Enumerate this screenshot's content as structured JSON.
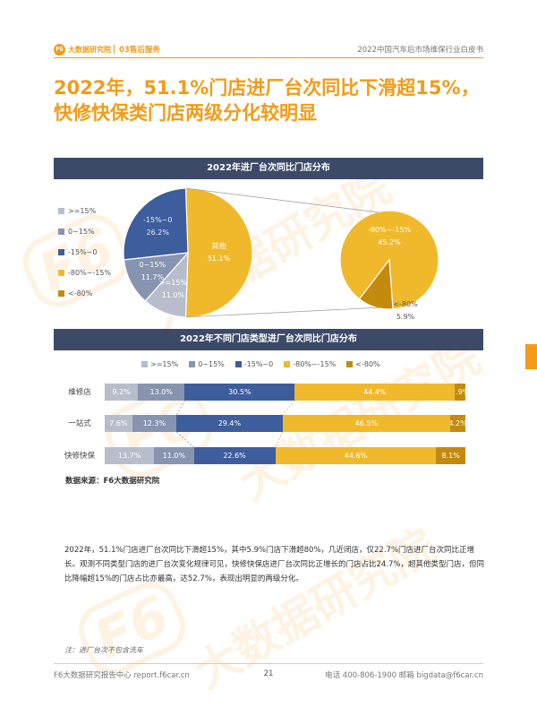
{
  "header": {
    "logo_mark": "F6",
    "logo_text": "大数据研究院",
    "section": "03售后服务",
    "report_title": "2022中国汽车后市场维保行业白皮书"
  },
  "headline": {
    "line1": "2022年，51.1%门店进厂台次同比下滑超15%，",
    "line2": "快修快保类门店两级分化较明显"
  },
  "watermark": {
    "text": "大数据研究院",
    "mark": "F6"
  },
  "colors": {
    "accent": "#f39b16",
    "title_bar": "#3c4a68",
    "gte15": "#b8bdcc",
    "r0_15": "#8794b0",
    "rneg15_0": "#3d5d9c",
    "rneg80_neg15": "#f0b92b",
    "lt_neg80": "#c48a0e"
  },
  "chart_data": [
    {
      "type": "pie",
      "title": "2022年进厂台次同比门店分布",
      "legend": [
        ">=15%",
        "0~15%",
        "-15%~0",
        "-80%~-15%",
        "<-80%"
      ],
      "slices": [
        {
          "name": ">=15%",
          "value": 11.0,
          "label": ">=15%",
          "value_label": "11.0%"
        },
        {
          "name": "0~15%",
          "value": 11.7,
          "label": "0~15%",
          "value_label": "11.7%"
        },
        {
          "name": "-15%~0",
          "value": 26.2,
          "label": "-15%~0",
          "value_label": "26.2%"
        },
        {
          "name": "其他",
          "value": 51.1,
          "label": "其他",
          "value_label": "51.1%"
        }
      ],
      "breakout": {
        "slices": [
          {
            "name": "-80%~-15%",
            "value": 45.2,
            "label": "-80%~-15%",
            "value_label": "45.2%"
          },
          {
            "name": "<-80%",
            "value": 5.9,
            "label": "<-80%",
            "value_label": "5.9%"
          }
        ]
      }
    },
    {
      "type": "bar",
      "orientation": "horizontal-stacked-100",
      "title": "2022年不同门店类型进厂台次同比门店分布",
      "categories": [
        "维修店",
        "一站式",
        "快修快保"
      ],
      "series": [
        {
          "name": ">=15%",
          "values": [
            9.2,
            7.6,
            13.7
          ],
          "labels": [
            "9.2%",
            "7.6%",
            "13.7%"
          ]
        },
        {
          "name": "0~15%",
          "values": [
            13.0,
            12.3,
            11.0
          ],
          "labels": [
            "13.0%",
            "12.3%",
            "11.0%"
          ]
        },
        {
          "name": "-15%~0",
          "values": [
            30.5,
            29.4,
            22.6
          ],
          "labels": [
            "30.5%",
            "29.4%",
            "22.6%"
          ]
        },
        {
          "name": "-80%~-15%",
          "values": [
            44.4,
            46.5,
            44.6
          ],
          "labels": [
            "44.4%",
            "46.5%",
            "44.6%"
          ]
        },
        {
          "name": "<-80%",
          "values": [
            2.9,
            4.2,
            8.1
          ],
          "labels": [
            "2.9%",
            "4.2%",
            "8.1%"
          ]
        }
      ]
    }
  ],
  "source": "数据来源：F6大数据研究院",
  "paragraph": "2022年，51.1%门店进厂台次同比下滑超15%，其中5.9%门店下滑超80%，几近闭店，仅22.7%门店进厂台次同比正增长。观测不同类型门店的进厂台次变化规律可见，快修快保店进厂台次同比正增长的门店占比24.7%，超其他类型门店，但同比降幅超15%的门店占比亦最高，达52.7%，表现出明显的两级分化。",
  "note": "注：进厂台次不包含洗车",
  "footer": {
    "left": "F6大数据研究报告中心 report.f6car.cn",
    "page": "21",
    "right": "电话 400-806-1900  邮箱 bigdata@f6car.cn"
  }
}
